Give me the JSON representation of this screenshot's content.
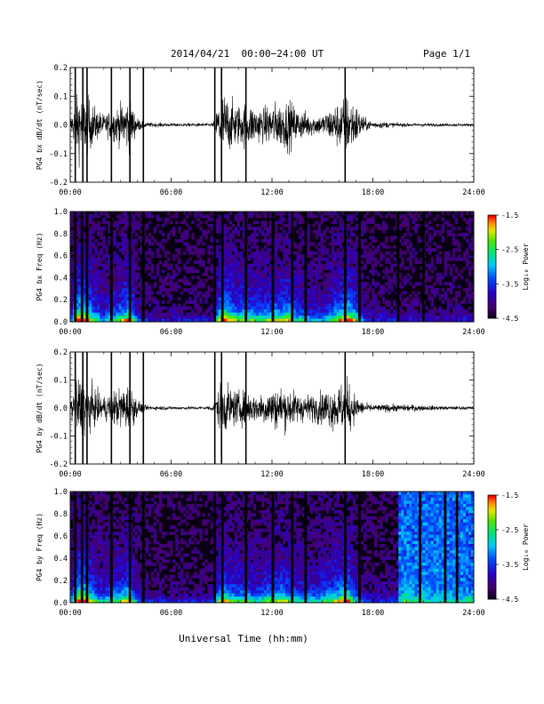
{
  "header": {
    "date_range": "2014/04/21  00:00−24:00 UT",
    "page": "Page 1/1"
  },
  "xlabel": "Universal Time (hh:mm)",
  "x_ticks": [
    "00:00",
    "06:00",
    "12:00",
    "18:00",
    "24:00"
  ],
  "colors": {
    "trace": "#000000",
    "frame": "#000000",
    "background": "#ffffff"
  },
  "chart_data": [
    {
      "type": "line",
      "ylabel": "PG4 bx dB/dt (nT/sec)",
      "ylim": [
        -0.2,
        0.2
      ],
      "y_ticks": [
        "0.2",
        "0.1",
        "0.0",
        "-0.1",
        "-0.2"
      ],
      "xlim_hours": [
        0,
        24
      ],
      "envelope": {
        "x_hours": [
          0,
          0.5,
          1,
          1.5,
          2,
          2.5,
          3,
          3.5,
          4,
          4.5,
          5,
          5.5,
          6,
          6.5,
          7,
          7.5,
          8,
          8.5,
          9,
          9.5,
          10,
          10.5,
          11,
          11.5,
          12,
          12.5,
          13,
          13.5,
          14,
          14.5,
          15,
          15.5,
          16,
          16.5,
          17,
          17.5,
          18,
          18.5,
          19,
          19.5,
          20,
          20.5,
          21,
          21.5,
          22,
          22.5,
          23,
          23.5,
          24
        ],
        "amplitude": [
          0.04,
          0.2,
          0.17,
          0.1,
          0.06,
          0.09,
          0.12,
          0.16,
          0.04,
          0.015,
          0.012,
          0.012,
          0.01,
          0.01,
          0.01,
          0.01,
          0.01,
          0.01,
          0.2,
          0.15,
          0.12,
          0.13,
          0.11,
          0.1,
          0.13,
          0.13,
          0.15,
          0.09,
          0.08,
          0.06,
          0.06,
          0.1,
          0.14,
          0.18,
          0.12,
          0.04,
          0.02,
          0.02,
          0.015,
          0.012,
          0.01,
          0.01,
          0.01,
          0.01,
          0.008,
          0.008,
          0.008,
          0.008,
          0.008
        ]
      },
      "spikes_hours": [
        0.3,
        0.75,
        1.0,
        2.45,
        3.55,
        4.35,
        8.6,
        9.0,
        10.45,
        16.35
      ]
    },
    {
      "type": "heatmap",
      "ylabel": "PG4 bx Freq (Hz)",
      "ylim": [
        0.0,
        1.0
      ],
      "y_ticks": [
        "1.0",
        "0.8",
        "0.6",
        "0.4",
        "0.2",
        "0.0"
      ],
      "colorbar": {
        "label": "Log₁₀ Power",
        "range": [
          -4.5,
          -1.5
        ],
        "ticks": [
          "-1.5",
          "-2.5",
          "-3.5",
          "-4.5"
        ]
      },
      "dark_stripes_hours": [
        0.3,
        0.7,
        1.0,
        2.45,
        3.55,
        4.35,
        8.6,
        9.05,
        10.45,
        12.05,
        13.2,
        14.0,
        16.35,
        17.2,
        19.5,
        21.0
      ]
    },
    {
      "type": "line",
      "ylabel": "PG4 by dB/dt (nT/sec)",
      "ylim": [
        -0.2,
        0.2
      ],
      "y_ticks": [
        "0.2",
        "0.1",
        "0.0",
        "-0.1",
        "-0.2"
      ],
      "xlim_hours": [
        0,
        24
      ],
      "envelope": {
        "x_hours": [
          0,
          0.5,
          1,
          1.5,
          2,
          2.5,
          3,
          3.5,
          4,
          4.5,
          5,
          5.5,
          6,
          6.5,
          7,
          7.5,
          8,
          8.5,
          9,
          9.5,
          10,
          10.5,
          11,
          11.5,
          12,
          12.5,
          13,
          13.5,
          14,
          14.5,
          15,
          15.5,
          16,
          16.5,
          17,
          17.5,
          18,
          18.5,
          19,
          19.5,
          20,
          20.5,
          21,
          21.5,
          22,
          22.5,
          23,
          23.5,
          24
        ],
        "amplitude": [
          0.05,
          0.2,
          0.17,
          0.1,
          0.07,
          0.1,
          0.12,
          0.15,
          0.05,
          0.015,
          0.012,
          0.012,
          0.01,
          0.01,
          0.01,
          0.01,
          0.01,
          0.02,
          0.16,
          0.12,
          0.1,
          0.1,
          0.08,
          0.1,
          0.12,
          0.13,
          0.12,
          0.09,
          0.08,
          0.08,
          0.1,
          0.12,
          0.14,
          0.17,
          0.07,
          0.03,
          0.02,
          0.02,
          0.025,
          0.02,
          0.02,
          0.02,
          0.015,
          0.015,
          0.012,
          0.01,
          0.01,
          0.01,
          0.01
        ]
      },
      "spikes_hours": [
        0.3,
        0.75,
        1.0,
        2.45,
        3.55,
        4.35,
        8.6,
        9.0,
        10.45,
        16.35
      ]
    },
    {
      "type": "heatmap",
      "ylabel": "PG4 by Freq (Hz)",
      "ylim": [
        0.0,
        1.0
      ],
      "y_ticks": [
        "1.0",
        "0.8",
        "0.6",
        "0.4",
        "0.2",
        "0.0"
      ],
      "colorbar": {
        "label": "Log₁₀ Power",
        "range": [
          -4.5,
          -1.5
        ],
        "ticks": [
          "-1.5",
          "-2.5",
          "-3.5",
          "-4.5"
        ]
      },
      "dark_stripes_hours": [
        0.3,
        0.7,
        1.0,
        2.45,
        3.55,
        4.35,
        8.6,
        9.05,
        10.45,
        12.05,
        13.2,
        14.0,
        16.35,
        17.2,
        20.8,
        22.3,
        23.0
      ]
    }
  ]
}
